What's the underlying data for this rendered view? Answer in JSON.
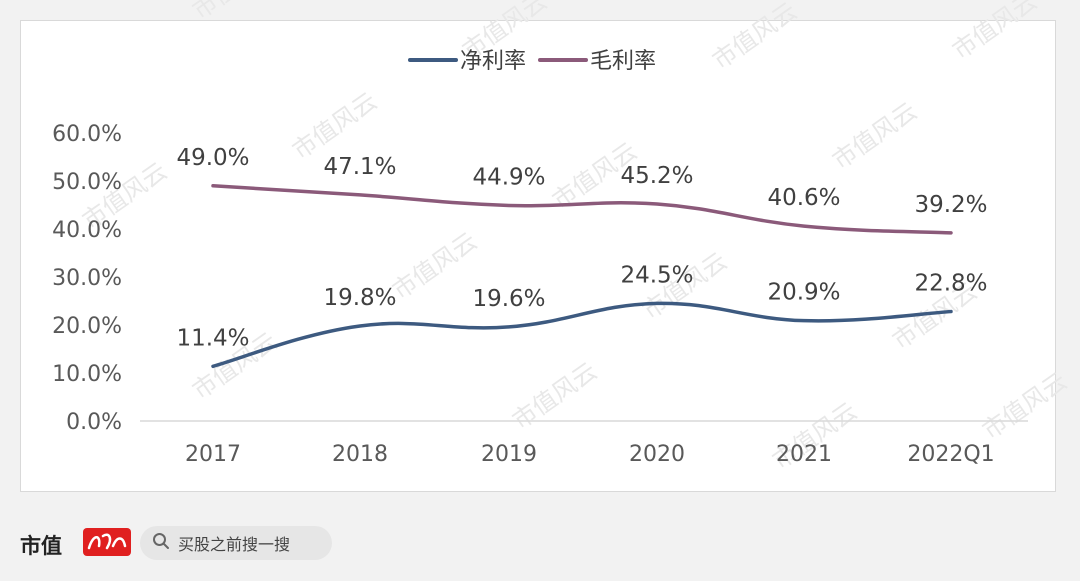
{
  "chart_data": {
    "type": "line",
    "categories": [
      "2017",
      "2018",
      "2019",
      "2020",
      "2021",
      "2022Q1"
    ],
    "series": [
      {
        "name": "净利率",
        "color": "#3d5a80",
        "values": [
          11.4,
          19.8,
          19.6,
          24.5,
          20.9,
          22.8
        ],
        "labels": [
          "11.4%",
          "19.8%",
          "19.6%",
          "24.5%",
          "20.9%",
          "22.8%"
        ]
      },
      {
        "name": "毛利率",
        "color": "#8b5a7a",
        "values": [
          49.0,
          47.1,
          44.9,
          45.2,
          40.6,
          39.2
        ],
        "labels": [
          "49.0%",
          "47.1%",
          "44.9%",
          "45.2%",
          "40.6%",
          "39.2%"
        ]
      }
    ],
    "y_ticks": [
      "0.0%",
      "10.0%",
      "20.0%",
      "30.0%",
      "40.0%",
      "50.0%",
      "60.0%"
    ],
    "ylim": [
      0,
      60
    ],
    "grid": false,
    "legend_position": "top-center",
    "smooth": true
  },
  "footer": {
    "brand": "市值",
    "search_icon": "search-icon",
    "search_text": "买股之前搜一搜"
  },
  "watermark": {
    "text": "市值风云",
    "color": "#e8e8e8"
  }
}
